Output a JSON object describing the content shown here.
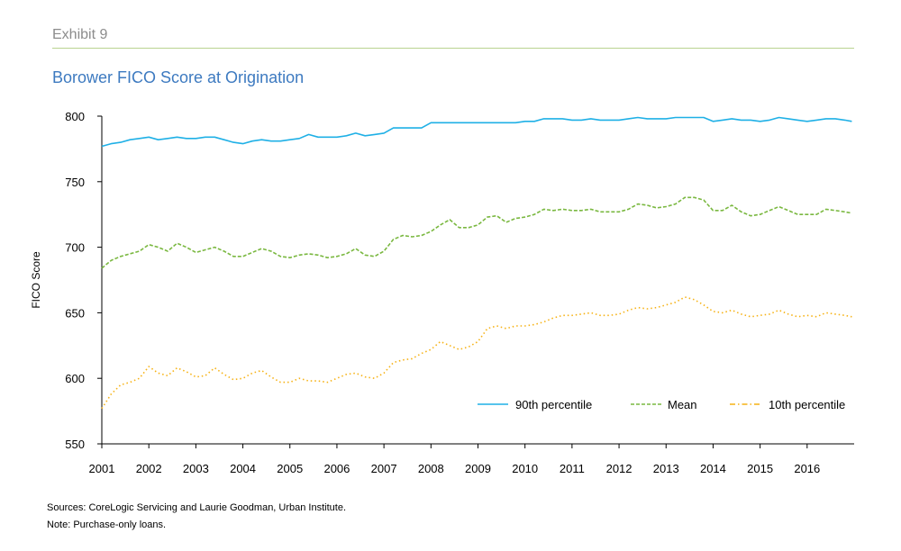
{
  "header": {
    "exhibit": "Exhibit 9",
    "title": "Borower FICO Score at Origination"
  },
  "footer": {
    "sources": "Sources: CoreLogic Servicing and Laurie Goodman, Urban Institute.",
    "note": "Note: Purchase-only loans."
  },
  "colors": {
    "p90": "#1fb0e6",
    "mean": "#7ab840",
    "p10": "#f6b215",
    "axis": "#000000",
    "rule": "#b9d38f",
    "title": "#3d7ac0"
  },
  "chart_data": {
    "type": "line",
    "title": "Borower FICO Score at Origination",
    "xlabel": "",
    "ylabel": "FICO Score",
    "xlim": [
      2001,
      2017
    ],
    "ylim": [
      550,
      800
    ],
    "yticks": [
      550,
      600,
      650,
      700,
      750,
      800
    ],
    "xticks": [
      "2001",
      "2002",
      "2003",
      "2004",
      "2005",
      "2006",
      "2007",
      "2008",
      "2009",
      "2010",
      "2011",
      "2012",
      "2013",
      "2014",
      "2015",
      "2016"
    ],
    "grid": false,
    "legend": "bottom-right, inside plot",
    "series": [
      {
        "name": "90th percentile",
        "style": "solid",
        "x": [
          2001.0,
          2001.2,
          2001.4,
          2001.6,
          2001.8,
          2002.0,
          2002.2,
          2002.4,
          2002.6,
          2002.8,
          2003.0,
          2003.2,
          2003.4,
          2003.6,
          2003.8,
          2004.0,
          2004.2,
          2004.4,
          2004.6,
          2004.8,
          2005.0,
          2005.2,
          2005.4,
          2005.6,
          2005.8,
          2006.0,
          2006.2,
          2006.4,
          2006.6,
          2006.8,
          2007.0,
          2007.2,
          2007.4,
          2007.6,
          2007.8,
          2008.0,
          2008.2,
          2008.4,
          2008.6,
          2008.8,
          2009.0,
          2009.2,
          2009.4,
          2009.6,
          2009.8,
          2010.0,
          2010.2,
          2010.4,
          2010.6,
          2010.8,
          2011.0,
          2011.2,
          2011.4,
          2011.6,
          2011.8,
          2012.0,
          2012.2,
          2012.4,
          2012.6,
          2012.8,
          2013.0,
          2013.2,
          2013.4,
          2013.6,
          2013.8,
          2014.0,
          2014.2,
          2014.4,
          2014.6,
          2014.8,
          2015.0,
          2015.2,
          2015.4,
          2015.6,
          2015.8,
          2016.0,
          2016.2,
          2016.4,
          2016.6,
          2016.8,
          2016.95
        ],
        "values": [
          777,
          779,
          780,
          782,
          783,
          784,
          782,
          783,
          784,
          783,
          783,
          784,
          784,
          782,
          780,
          779,
          781,
          782,
          781,
          781,
          782,
          783,
          786,
          784,
          784,
          784,
          785,
          787,
          785,
          786,
          787,
          791,
          791,
          791,
          791,
          795,
          795,
          795,
          795,
          795,
          795,
          795,
          795,
          795,
          795,
          796,
          796,
          798,
          798,
          798,
          797,
          797,
          798,
          797,
          797,
          797,
          798,
          799,
          798,
          798,
          798,
          799,
          799,
          799,
          799,
          796,
          797,
          798,
          797,
          797,
          796,
          797,
          799,
          798,
          797,
          796,
          797,
          798,
          798,
          797,
          796
        ]
      },
      {
        "name": "Mean",
        "style": "dashed",
        "x": [
          2001.0,
          2001.2,
          2001.4,
          2001.6,
          2001.8,
          2002.0,
          2002.2,
          2002.4,
          2002.6,
          2002.8,
          2003.0,
          2003.2,
          2003.4,
          2003.6,
          2003.8,
          2004.0,
          2004.2,
          2004.4,
          2004.6,
          2004.8,
          2005.0,
          2005.2,
          2005.4,
          2005.6,
          2005.8,
          2006.0,
          2006.2,
          2006.4,
          2006.6,
          2006.8,
          2007.0,
          2007.2,
          2007.4,
          2007.6,
          2007.8,
          2008.0,
          2008.2,
          2008.4,
          2008.6,
          2008.8,
          2009.0,
          2009.2,
          2009.4,
          2009.6,
          2009.8,
          2010.0,
          2010.2,
          2010.4,
          2010.6,
          2010.8,
          2011.0,
          2011.2,
          2011.4,
          2011.6,
          2011.8,
          2012.0,
          2012.2,
          2012.4,
          2012.6,
          2012.8,
          2013.0,
          2013.2,
          2013.4,
          2013.6,
          2013.8,
          2014.0,
          2014.2,
          2014.4,
          2014.6,
          2014.8,
          2015.0,
          2015.2,
          2015.4,
          2015.6,
          2015.8,
          2016.0,
          2016.2,
          2016.4,
          2016.6,
          2016.8,
          2016.95
        ],
        "values": [
          684,
          690,
          693,
          695,
          697,
          702,
          700,
          697,
          703,
          700,
          696,
          698,
          700,
          697,
          693,
          693,
          696,
          699,
          697,
          693,
          692,
          694,
          695,
          694,
          692,
          693,
          695,
          699,
          694,
          693,
          697,
          706,
          709,
          708,
          709,
          712,
          717,
          721,
          715,
          715,
          717,
          723,
          724,
          719,
          722,
          723,
          725,
          729,
          728,
          729,
          728,
          728,
          729,
          727,
          727,
          727,
          729,
          733,
          732,
          730,
          731,
          733,
          738,
          738,
          736,
          728,
          728,
          732,
          727,
          724,
          725,
          728,
          731,
          728,
          725,
          725,
          725,
          729,
          728,
          727,
          726
        ]
      },
      {
        "name": "10th percentile",
        "style": "dash-dot",
        "x": [
          2001.0,
          2001.2,
          2001.4,
          2001.6,
          2001.8,
          2002.0,
          2002.2,
          2002.4,
          2002.6,
          2002.8,
          2003.0,
          2003.2,
          2003.4,
          2003.6,
          2003.8,
          2004.0,
          2004.2,
          2004.4,
          2004.6,
          2004.8,
          2005.0,
          2005.2,
          2005.4,
          2005.6,
          2005.8,
          2006.0,
          2006.2,
          2006.4,
          2006.6,
          2006.8,
          2007.0,
          2007.2,
          2007.4,
          2007.6,
          2007.8,
          2008.0,
          2008.2,
          2008.4,
          2008.6,
          2008.8,
          2009.0,
          2009.2,
          2009.4,
          2009.6,
          2009.8,
          2010.0,
          2010.2,
          2010.4,
          2010.6,
          2010.8,
          2011.0,
          2011.2,
          2011.4,
          2011.6,
          2011.8,
          2012.0,
          2012.2,
          2012.4,
          2012.6,
          2012.8,
          2013.0,
          2013.2,
          2013.4,
          2013.6,
          2013.8,
          2014.0,
          2014.2,
          2014.4,
          2014.6,
          2014.8,
          2015.0,
          2015.2,
          2015.4,
          2015.6,
          2015.8,
          2016.0,
          2016.2,
          2016.4,
          2016.6,
          2016.8,
          2016.95
        ],
        "values": [
          577,
          588,
          595,
          597,
          600,
          609,
          604,
          602,
          608,
          605,
          601,
          602,
          608,
          603,
          599,
          600,
          604,
          606,
          601,
          597,
          597,
          600,
          598,
          598,
          597,
          600,
          603,
          604,
          601,
          600,
          604,
          612,
          614,
          615,
          619,
          622,
          628,
          625,
          622,
          624,
          628,
          638,
          640,
          638,
          640,
          640,
          641,
          643,
          646,
          648,
          648,
          649,
          650,
          648,
          648,
          649,
          652,
          654,
          653,
          654,
          656,
          658,
          662,
          660,
          656,
          651,
          650,
          652,
          649,
          647,
          648,
          649,
          652,
          649,
          647,
          648,
          647,
          650,
          649,
          648,
          647
        ]
      }
    ]
  }
}
